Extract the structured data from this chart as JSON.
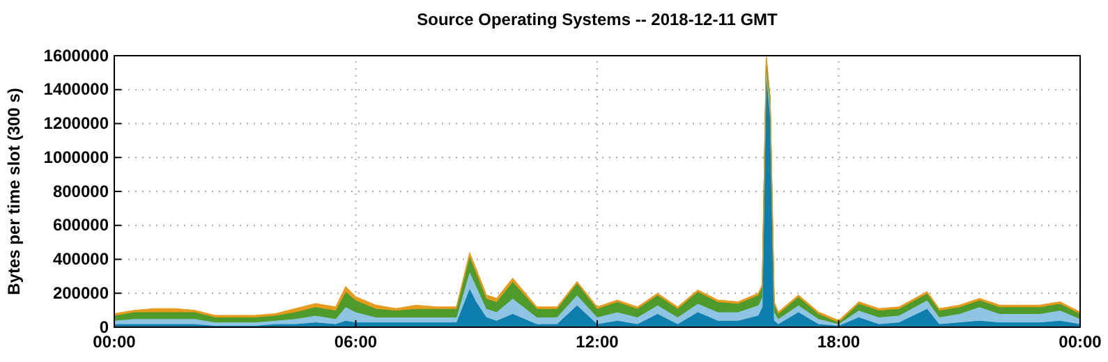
{
  "chart_data": {
    "type": "area",
    "stacked": true,
    "title": "Source Operating Systems -- 2018-12-11 GMT",
    "ylabel": "Bytes per time slot (300 s)",
    "x": [
      0,
      0.5,
      1,
      1.5,
      2,
      2.5,
      3,
      3.5,
      4,
      4.5,
      5,
      5.5,
      5.75,
      6,
      6.5,
      7,
      7.5,
      8,
      8.5,
      8.83,
      9,
      9.25,
      9.5,
      9.9,
      10.5,
      11,
      11.5,
      12,
      12.5,
      13,
      13.5,
      14,
      14.5,
      15,
      15.5,
      16,
      16.1,
      16.2,
      16.3,
      16.4,
      16.5,
      17,
      17.5,
      18,
      18.5,
      19,
      19.5,
      20.2,
      20.5,
      21,
      21.5,
      22,
      22.5,
      23,
      23.5,
      24
    ],
    "xlim": [
      0,
      24
    ],
    "xticks": [
      {
        "value": 0,
        "label": "00:00"
      },
      {
        "value": 6,
        "label": "06:00"
      },
      {
        "value": 12,
        "label": "12:00"
      },
      {
        "value": 18,
        "label": "18:00"
      },
      {
        "value": 24,
        "label": "00:00"
      }
    ],
    "ylim": [
      0,
      1600000
    ],
    "yticks": [
      0,
      200000,
      400000,
      600000,
      800000,
      1000000,
      1200000,
      1400000,
      1600000
    ],
    "grid": true,
    "series": [
      {
        "color": "#0e7fad",
        "values": [
          20000,
          20000,
          20000,
          20000,
          20000,
          10000,
          10000,
          10000,
          20000,
          20000,
          30000,
          20000,
          40000,
          30000,
          30000,
          30000,
          30000,
          30000,
          30000,
          230000,
          150000,
          60000,
          40000,
          80000,
          20000,
          20000,
          130000,
          20000,
          40000,
          20000,
          80000,
          20000,
          90000,
          40000,
          40000,
          70000,
          120000,
          1500000,
          1250000,
          40000,
          20000,
          90000,
          20000,
          10000,
          60000,
          20000,
          30000,
          110000,
          20000,
          30000,
          40000,
          30000,
          30000,
          30000,
          40000,
          20000
        ]
      },
      {
        "color": "#8fc5e3",
        "values": [
          20000,
          30000,
          30000,
          30000,
          30000,
          20000,
          20000,
          20000,
          20000,
          30000,
          40000,
          30000,
          80000,
          60000,
          30000,
          30000,
          30000,
          30000,
          30000,
          100000,
          90000,
          50000,
          50000,
          90000,
          40000,
          40000,
          60000,
          40000,
          50000,
          40000,
          50000,
          40000,
          50000,
          50000,
          50000,
          60000,
          60000,
          50000,
          50000,
          50000,
          30000,
          40000,
          30000,
          10000,
          40000,
          40000,
          40000,
          50000,
          40000,
          50000,
          80000,
          50000,
          50000,
          50000,
          60000,
          30000
        ]
      },
      {
        "color": "#4e9a2b",
        "values": [
          30000,
          40000,
          40000,
          40000,
          40000,
          30000,
          30000,
          30000,
          30000,
          40000,
          50000,
          50000,
          90000,
          70000,
          50000,
          40000,
          50000,
          50000,
          50000,
          90000,
          80000,
          60000,
          60000,
          100000,
          50000,
          50000,
          70000,
          50000,
          60000,
          50000,
          60000,
          50000,
          70000,
          60000,
          50000,
          60000,
          60000,
          40000,
          40000,
          50000,
          30000,
          50000,
          30000,
          10000,
          40000,
          40000,
          40000,
          40000,
          40000,
          40000,
          40000,
          40000,
          40000,
          40000,
          40000,
          30000
        ]
      },
      {
        "color": "#e69b1e",
        "values": [
          10000,
          10000,
          20000,
          20000,
          10000,
          10000,
          10000,
          10000,
          10000,
          20000,
          20000,
          20000,
          30000,
          20000,
          20000,
          10000,
          20000,
          10000,
          10000,
          20000,
          20000,
          20000,
          20000,
          20000,
          10000,
          10000,
          10000,
          10000,
          10000,
          10000,
          10000,
          10000,
          10000,
          10000,
          10000,
          10000,
          10000,
          10000,
          10000,
          10000,
          10000,
          10000,
          10000,
          10000,
          10000,
          10000,
          10000,
          10000,
          10000,
          10000,
          10000,
          10000,
          10000,
          10000,
          10000,
          10000
        ]
      }
    ]
  }
}
